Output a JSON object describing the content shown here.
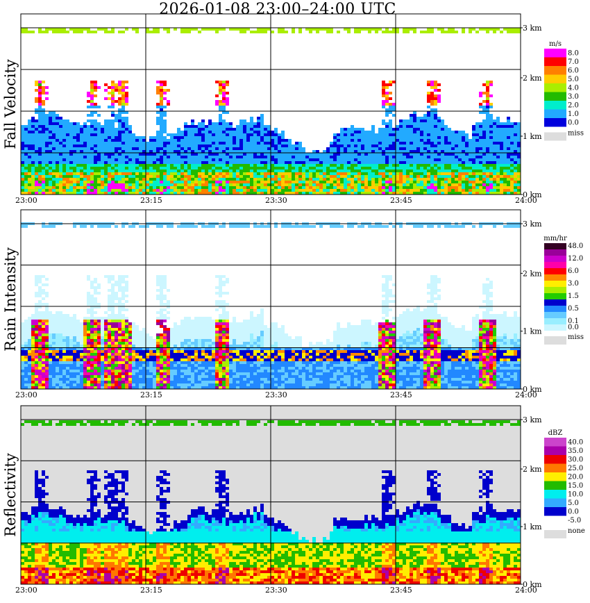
{
  "header": {
    "title": "2026-01-08   23:00–24:00 UTC"
  },
  "chart_data": [
    {
      "type": "heatmap",
      "title": "",
      "ylabel": "Fall Velocity",
      "x_ticks": [
        "23:00",
        "23:15",
        "23:30",
        "23:45",
        "24:00"
      ],
      "y_ticks": [
        "0 km",
        "1 km",
        "2 km",
        "3 km"
      ],
      "ylim_km": [
        0,
        3.2
      ],
      "grid": true,
      "legend": {
        "placement": "right",
        "unit": "m/s",
        "levels": [
          {
            "label": "8.0",
            "color": "#ff00ff"
          },
          {
            "label": "7.0",
            "color": "#ff0000"
          },
          {
            "label": "6.0",
            "color": "#ff8000"
          },
          {
            "label": "5.0",
            "color": "#ffcc00"
          },
          {
            "label": "4.0",
            "color": "#aaee00"
          },
          {
            "label": "3.0",
            "color": "#22bb00"
          },
          {
            "label": "2.0",
            "color": "#00eecc"
          },
          {
            "label": "1.0",
            "color": "#22aaff"
          },
          {
            "label": "0.0",
            "color": "#0000dd"
          }
        ],
        "missing": {
          "label": "miss",
          "color": "#dddddd"
        }
      }
    },
    {
      "type": "heatmap",
      "title": "",
      "ylabel": "Rain Intensity",
      "x_ticks": [
        "23:00",
        "23:15",
        "23:30",
        "23:45",
        "24:00"
      ],
      "y_ticks": [
        "0 km",
        "1 km",
        "2 km",
        "3 km"
      ],
      "ylim_km": [
        0,
        3.2
      ],
      "grid": true,
      "legend": {
        "placement": "right",
        "unit": "mm/hr",
        "levels": [
          {
            "label": "48.0",
            "color": "#330022"
          },
          {
            "label": "",
            "color": "#990099"
          },
          {
            "label": "12.0",
            "color": "#cc00cc"
          },
          {
            "label": "",
            "color": "#ff00aa"
          },
          {
            "label": "6.0",
            "color": "#ff0000"
          },
          {
            "label": "",
            "color": "#ff8800"
          },
          {
            "label": "3.0",
            "color": "#ffee00"
          },
          {
            "label": "",
            "color": "#aaee00"
          },
          {
            "label": "1.5",
            "color": "#22cc00"
          },
          {
            "label": "",
            "color": "#0000cc"
          },
          {
            "label": "0.5",
            "color": "#2288ff"
          },
          {
            "label": "",
            "color": "#66ccff"
          },
          {
            "label": "0.1",
            "color": "#99eeff"
          },
          {
            "label": "0.0",
            "color": "#ccf6ff"
          }
        ],
        "missing": {
          "label": "miss",
          "color": "#dddddd"
        }
      }
    },
    {
      "type": "heatmap",
      "title": "",
      "ylabel": "Reflectivity",
      "x_ticks": [
        "23:00",
        "23:15",
        "23:30",
        "23:45",
        "24:00"
      ],
      "y_ticks": [
        "0 km",
        "1 km",
        "2 km",
        "3 km"
      ],
      "ylim_km": [
        0,
        3.2
      ],
      "grid": true,
      "legend": {
        "placement": "right",
        "unit": "dBZ",
        "levels": [
          {
            "label": "40.0",
            "color": "#cc44cc"
          },
          {
            "label": "35.0",
            "color": "#aa00aa"
          },
          {
            "label": "30.0",
            "color": "#ee0000"
          },
          {
            "label": "25.0",
            "color": "#ff7700"
          },
          {
            "label": "20.0",
            "color": "#ffee00"
          },
          {
            "label": "15.0",
            "color": "#22bb00"
          },
          {
            "label": "10.0",
            "color": "#00eeee"
          },
          {
            "label": "5.0",
            "color": "#33aaff"
          },
          {
            "label": "0.0",
            "color": "#0000cc"
          },
          {
            "label": "-5.0",
            "color": "#ffffff"
          }
        ],
        "missing": {
          "label": "none",
          "color": "#dddddd"
        }
      }
    }
  ]
}
